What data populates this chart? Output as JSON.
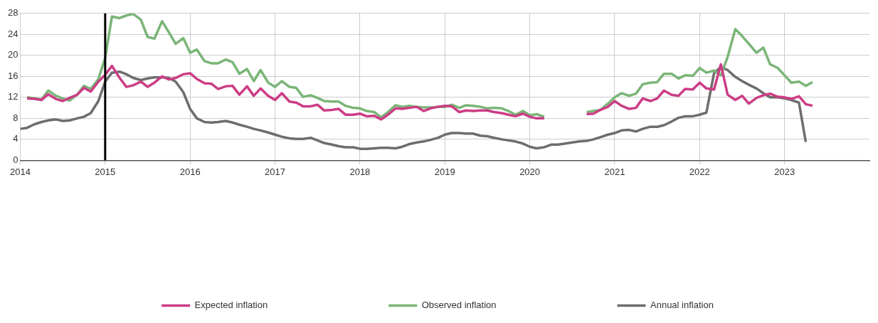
{
  "chart_data": {
    "type": "line",
    "xlim": [
      2014,
      2024
    ],
    "xticks": [
      2014,
      2015,
      2016,
      2017,
      2018,
      2019,
      2020,
      2021,
      2022,
      2023
    ],
    "ylim": [
      0,
      28
    ],
    "yticks": [
      0,
      4,
      8,
      12,
      16,
      20,
      24,
      28
    ],
    "grid": true,
    "legend": "bottom",
    "marker": "none",
    "line_style": "solid",
    "ref_lines": [
      {
        "axis": "x",
        "value": 2015,
        "color": "#000000"
      }
    ],
    "series": [
      {
        "name": "Expected inflation",
        "color": "#cc3d85",
        "x": [
          2014.08,
          2014.17,
          2014.25,
          2014.33,
          2014.42,
          2014.5,
          2014.58,
          2014.67,
          2014.75,
          2014.83,
          2014.92,
          2015.0,
          2015.08,
          2015.17,
          2015.25,
          2015.33,
          2015.42,
          2015.5,
          2015.58,
          2015.67,
          2015.75,
          2015.83,
          2015.92,
          2016.0,
          2016.08,
          2016.17,
          2016.25,
          2016.33,
          2016.42,
          2016.5,
          2016.58,
          2016.67,
          2016.75,
          2016.83,
          2016.92,
          2017.0,
          2017.08,
          2017.17,
          2017.25,
          2017.33,
          2017.42,
          2017.5,
          2017.58,
          2017.67,
          2017.75,
          2017.83,
          2017.92,
          2018.0,
          2018.08,
          2018.17,
          2018.25,
          2018.33,
          2018.42,
          2018.5,
          2018.58,
          2018.67,
          2018.75,
          2018.83,
          2018.92,
          2019.0,
          2019.08,
          2019.17,
          2019.25,
          2019.33,
          2019.42,
          2019.5,
          2019.58,
          2019.67,
          2019.75,
          2019.83,
          2019.92,
          2020.0,
          2020.08,
          2020.17,
          2020.42,
          2020.67,
          2020.75,
          2020.83,
          2020.92,
          2021.0,
          2021.08,
          2021.17,
          2021.25,
          2021.33,
          2021.42,
          2021.5,
          2021.58,
          2021.67,
          2021.75,
          2021.83,
          2021.92,
          2022.0,
          2022.08,
          2022.17,
          2022.25,
          2022.33,
          2022.42,
          2022.5,
          2022.58,
          2022.67,
          2022.75,
          2022.83,
          2022.92,
          2023.0,
          2023.08,
          2023.17,
          2023.25,
          2023.33
        ],
        "values": [
          11.8,
          11.7,
          11.5,
          12.6,
          11.7,
          11.3,
          11.9,
          12.5,
          13.8,
          13.1,
          15.0,
          16.3,
          18.0,
          15.7,
          14.0,
          14.3,
          15.0,
          14.0,
          14.8,
          16.0,
          15.4,
          15.7,
          16.4,
          16.6,
          15.5,
          14.7,
          14.6,
          13.6,
          14.1,
          14.2,
          12.5,
          14.1,
          12.3,
          13.7,
          12.3,
          11.5,
          12.8,
          11.2,
          11.0,
          10.3,
          10.3,
          10.6,
          9.5,
          9.6,
          9.8,
          8.7,
          8.7,
          8.9,
          8.4,
          8.5,
          7.8,
          8.7,
          9.9,
          9.8,
          10.0,
          10.2,
          9.4,
          9.9,
          10.2,
          10.4,
          10.3,
          9.2,
          9.5,
          9.4,
          9.5,
          9.5,
          9.2,
          9.0,
          8.7,
          8.4,
          8.9,
          8.3,
          8.0,
          8.0,
          null,
          8.8,
          8.9,
          9.6,
          10.2,
          11.3,
          10.4,
          9.8,
          10.0,
          11.8,
          11.3,
          11.8,
          13.3,
          12.5,
          12.3,
          13.6,
          13.5,
          14.8,
          13.7,
          13.5,
          18.3,
          12.5,
          11.5,
          12.3,
          10.8,
          11.9,
          12.4,
          12.7,
          12.1,
          12.0,
          11.7,
          12.2,
          10.7,
          10.4
        ]
      },
      {
        "name": "Observed inflation",
        "color": "#7ab577",
        "x": [
          2014.08,
          2014.17,
          2014.25,
          2014.33,
          2014.42,
          2014.5,
          2014.58,
          2014.67,
          2014.75,
          2014.83,
          2014.92,
          2015.0,
          2015.08,
          2015.17,
          2015.25,
          2015.33,
          2015.42,
          2015.5,
          2015.58,
          2015.67,
          2015.75,
          2015.83,
          2015.92,
          2016.0,
          2016.08,
          2016.17,
          2016.25,
          2016.33,
          2016.42,
          2016.5,
          2016.58,
          2016.67,
          2016.75,
          2016.83,
          2016.92,
          2017.0,
          2017.08,
          2017.17,
          2017.25,
          2017.33,
          2017.42,
          2017.5,
          2017.58,
          2017.67,
          2017.75,
          2017.83,
          2017.92,
          2018.0,
          2018.08,
          2018.17,
          2018.25,
          2018.33,
          2018.42,
          2018.5,
          2018.58,
          2018.67,
          2018.75,
          2018.83,
          2018.92,
          2019.0,
          2019.08,
          2019.17,
          2019.25,
          2019.33,
          2019.42,
          2019.5,
          2019.58,
          2019.67,
          2019.75,
          2019.83,
          2019.92,
          2020.0,
          2020.08,
          2020.17,
          2020.42,
          2020.67,
          2020.75,
          2020.83,
          2020.92,
          2021.0,
          2021.08,
          2021.17,
          2021.25,
          2021.33,
          2021.42,
          2021.5,
          2021.58,
          2021.67,
          2021.75,
          2021.83,
          2021.92,
          2022.0,
          2022.08,
          2022.17,
          2022.25,
          2022.33,
          2022.42,
          2022.5,
          2022.58,
          2022.67,
          2022.75,
          2022.83,
          2022.92,
          2023.0,
          2023.08,
          2023.17,
          2023.25,
          2023.33
        ],
        "values": [
          12.0,
          11.8,
          11.6,
          13.3,
          12.3,
          11.8,
          11.4,
          12.5,
          14.2,
          13.6,
          15.5,
          19.5,
          27.4,
          27.1,
          27.6,
          27.9,
          26.8,
          23.5,
          23.2,
          26.5,
          24.4,
          22.2,
          23.3,
          20.5,
          21.1,
          18.9,
          18.5,
          18.5,
          19.2,
          18.7,
          16.5,
          17.4,
          15.1,
          17.2,
          14.8,
          14.0,
          15.1,
          14.0,
          13.8,
          12.1,
          12.4,
          11.9,
          11.3,
          11.2,
          11.2,
          10.4,
          10.0,
          9.9,
          9.4,
          9.2,
          8.2,
          9.2,
          10.5,
          10.2,
          10.4,
          10.2,
          10.1,
          10.1,
          10.2,
          10.2,
          10.6,
          10.0,
          10.5,
          10.4,
          10.2,
          9.9,
          10.0,
          9.9,
          9.4,
          8.7,
          9.4,
          8.6,
          8.8,
          8.3,
          null,
          9.2,
          9.4,
          9.6,
          10.8,
          12.0,
          12.8,
          12.3,
          12.7,
          14.5,
          14.8,
          14.9,
          16.5,
          16.5,
          15.6,
          16.2,
          16.1,
          17.6,
          16.7,
          17.1,
          16.2,
          19.7,
          25.0,
          23.7,
          22.2,
          20.5,
          21.5,
          18.3,
          17.6,
          16.2,
          14.8,
          15.0,
          14.2,
          14.9
        ]
      },
      {
        "name": "Annual inflation",
        "color": "#6d6d6d",
        "x": [
          2014.0,
          2014.08,
          2014.17,
          2014.25,
          2014.33,
          2014.42,
          2014.5,
          2014.58,
          2014.67,
          2014.75,
          2014.83,
          2014.92,
          2015.0,
          2015.08,
          2015.17,
          2015.25,
          2015.33,
          2015.42,
          2015.5,
          2015.58,
          2015.67,
          2015.75,
          2015.83,
          2015.92,
          2016.0,
          2016.08,
          2016.17,
          2016.25,
          2016.33,
          2016.42,
          2016.5,
          2016.58,
          2016.67,
          2016.75,
          2016.83,
          2016.92,
          2017.0,
          2017.08,
          2017.17,
          2017.25,
          2017.33,
          2017.42,
          2017.5,
          2017.58,
          2017.67,
          2017.75,
          2017.83,
          2017.92,
          2018.0,
          2018.08,
          2018.17,
          2018.25,
          2018.33,
          2018.42,
          2018.5,
          2018.58,
          2018.67,
          2018.75,
          2018.83,
          2018.92,
          2019.0,
          2019.08,
          2019.17,
          2019.25,
          2019.33,
          2019.42,
          2019.5,
          2019.58,
          2019.67,
          2019.75,
          2019.83,
          2019.92,
          2020.0,
          2020.08,
          2020.17,
          2020.25,
          2020.33,
          2020.42,
          2020.5,
          2020.58,
          2020.67,
          2020.75,
          2020.83,
          2020.92,
          2021.0,
          2021.08,
          2021.17,
          2021.25,
          2021.33,
          2021.42,
          2021.5,
          2021.58,
          2021.67,
          2021.75,
          2021.83,
          2021.92,
          2022.0,
          2022.08,
          2022.17,
          2022.25,
          2022.33,
          2022.42,
          2022.5,
          2022.58,
          2022.67,
          2022.75,
          2022.83,
          2022.92,
          2023.0,
          2023.08,
          2023.17,
          2023.25
        ],
        "values": [
          6.0,
          6.2,
          6.9,
          7.3,
          7.6,
          7.8,
          7.5,
          7.6,
          8.0,
          8.3,
          9.0,
          11.3,
          15.0,
          16.7,
          16.9,
          16.4,
          15.7,
          15.3,
          15.6,
          15.8,
          15.8,
          15.7,
          15.0,
          13.0,
          9.8,
          8.0,
          7.3,
          7.2,
          7.3,
          7.5,
          7.2,
          6.8,
          6.4,
          6.0,
          5.7,
          5.3,
          4.9,
          4.5,
          4.2,
          4.1,
          4.1,
          4.3,
          3.8,
          3.3,
          3.0,
          2.7,
          2.5,
          2.5,
          2.2,
          2.2,
          2.3,
          2.4,
          2.4,
          2.3,
          2.6,
          3.1,
          3.4,
          3.6,
          3.9,
          4.3,
          4.9,
          5.2,
          5.2,
          5.1,
          5.1,
          4.7,
          4.6,
          4.3,
          4.0,
          3.8,
          3.6,
          3.2,
          2.6,
          2.3,
          2.5,
          3.0,
          3.0,
          3.2,
          3.4,
          3.6,
          3.7,
          4.0,
          4.4,
          4.9,
          5.2,
          5.7,
          5.8,
          5.5,
          6.0,
          6.4,
          6.4,
          6.7,
          7.4,
          8.1,
          8.4,
          8.4,
          8.7,
          9.1,
          16.6,
          17.8,
          17.2,
          15.9,
          15.1,
          14.4,
          13.7,
          12.8,
          12.0,
          12.0,
          11.8,
          11.5,
          11.0,
          3.5
        ]
      }
    ]
  }
}
